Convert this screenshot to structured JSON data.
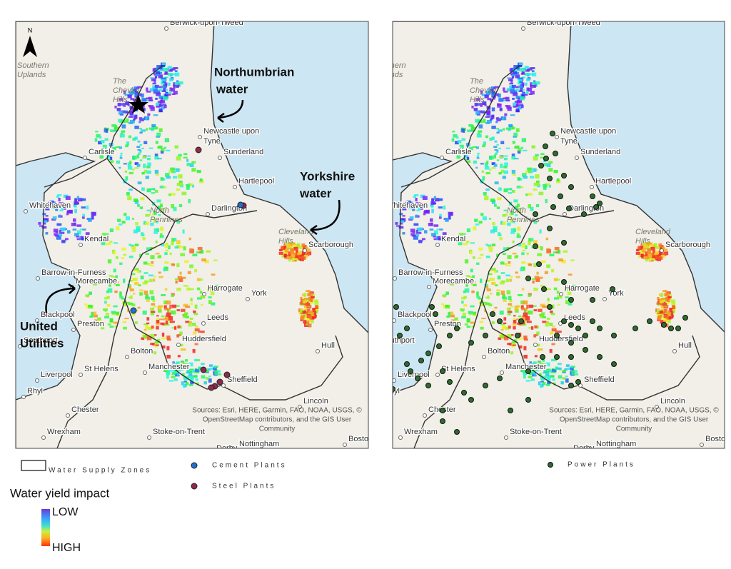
{
  "maps": [
    {
      "annotations": [
        {
          "lines": [
            "Northumbrian",
            "water"
          ]
        },
        {
          "lines": [
            "Yorkshire",
            "water"
          ]
        },
        {
          "lines": [
            "United",
            "Utilities"
          ]
        }
      ],
      "legend": [
        {
          "label": "Water Supply Zones"
        },
        {
          "label": "Cement Plants",
          "color": "#1f6fd1"
        },
        {
          "label": "Steel Plants",
          "color": "#8e2a4e"
        }
      ]
    },
    {
      "legend": [
        {
          "label": "Power Plants",
          "color": "#2e6b2e"
        }
      ]
    }
  ],
  "north": "N",
  "places": [
    [
      "Berwick-upon-Tweed"
    ],
    [
      "Newcastle upon",
      "Tyne"
    ],
    [
      "Sunderland"
    ],
    [
      "Carlisle"
    ],
    [
      "Hartlepool"
    ],
    [
      "Darlington"
    ],
    [
      "Whitehaven"
    ],
    [
      "Kendal"
    ],
    [
      "Scarborough"
    ],
    [
      "Barrow-in-Furness"
    ],
    [
      "Morecambe"
    ],
    [
      "Harrogate"
    ],
    [
      "York"
    ],
    [
      "Blackpool"
    ],
    [
      "Preston"
    ],
    [
      "Leeds"
    ],
    [
      "Huddersfield"
    ],
    [
      "Hull"
    ],
    [
      "Southport"
    ],
    [
      "Bolton"
    ],
    [
      "St Helens"
    ],
    [
      "Liverpool"
    ],
    [
      "Manchester"
    ],
    [
      "Sheffield"
    ],
    [
      "Rhyl"
    ],
    [
      "Chester"
    ],
    [
      "Lincoln"
    ],
    [
      "Stoke-on-Trent"
    ],
    [
      "Wrexham"
    ],
    [
      "Nottingham"
    ],
    [
      "Derby"
    ],
    [
      "Boston"
    ]
  ],
  "regions": [
    [
      "Southern",
      "Uplands"
    ],
    [
      "The",
      "Cheviot",
      "Hills"
    ],
    [
      "Cleveland",
      "Hills"
    ],
    [
      "North",
      "Pennines"
    ]
  ],
  "attribution": [
    "Sources: Esri, HERE, Garmin, FAO, NOAA, USGS, ©",
    "OpenStreetMap contributors, and the GIS User",
    "Community"
  ],
  "impact_legend": {
    "title": "Water yield impact",
    "low": "LOW",
    "high": "HIGH"
  }
}
